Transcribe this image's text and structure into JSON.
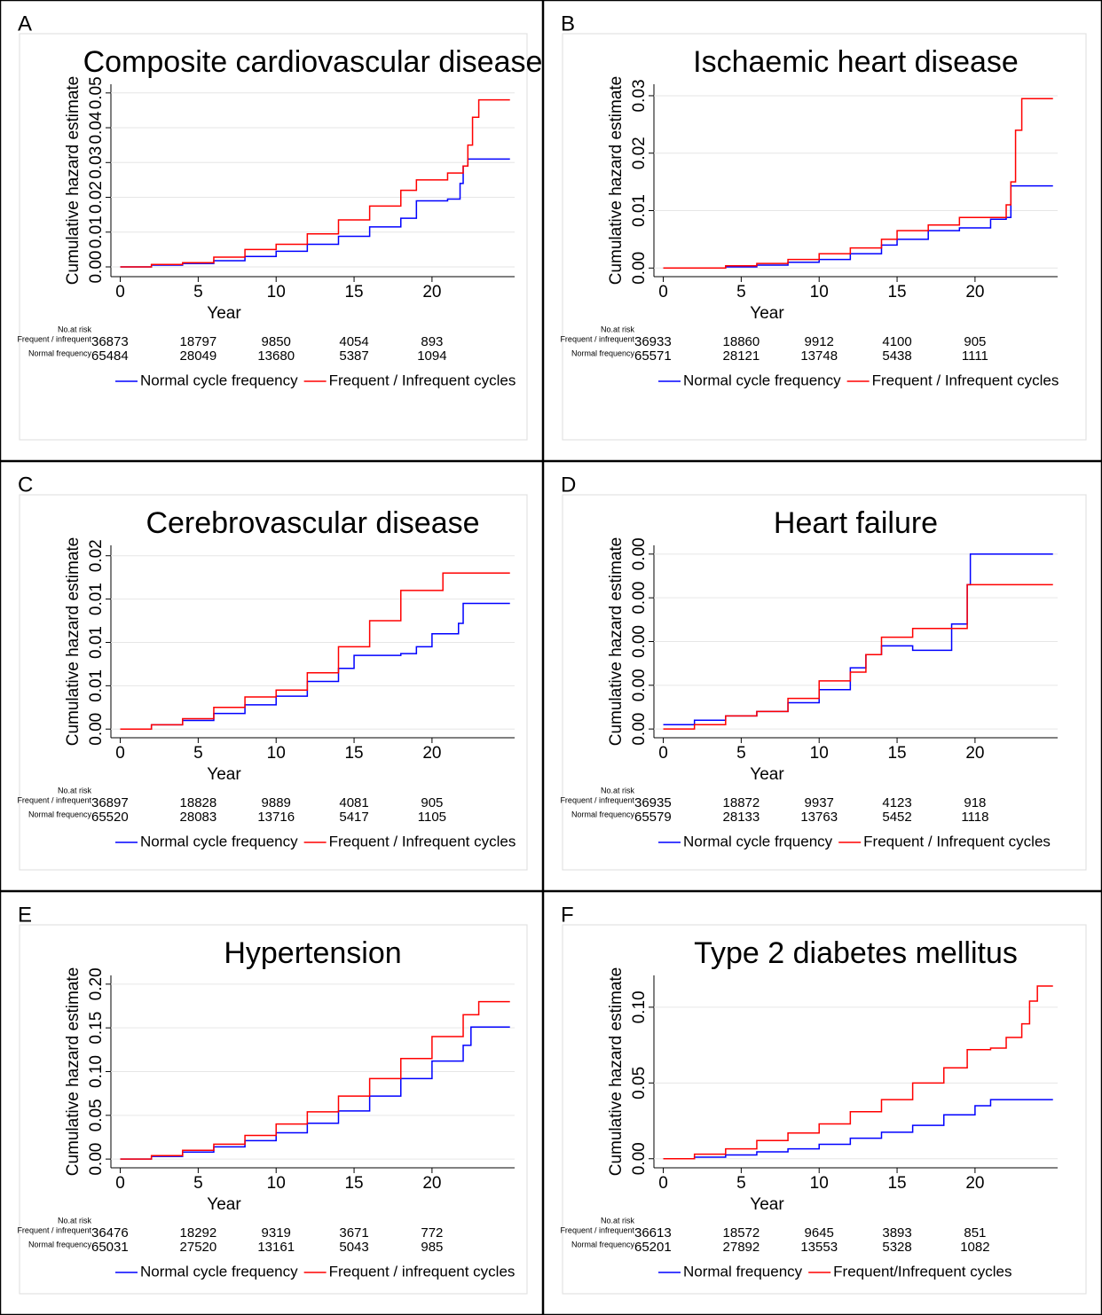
{
  "chart_data": [
    {
      "type": "step",
      "panel": "A",
      "title": "Composite cardiovascular disease",
      "xlabel": "Year",
      "ylabel": "Cumulative hazard estimate",
      "xlim": [
        -0.6,
        25.3
      ],
      "xticks": [
        0,
        5,
        10,
        15,
        20
      ],
      "ylim": [
        -0.0028,
        0.0525
      ],
      "yticks": [
        {
          "value": 0,
          "label": "0.00"
        },
        0.01,
        0.02,
        0.03,
        0.04,
        0.05
      ],
      "series": [
        {
          "name": "Normal cycle frequency",
          "color": "#0000ff",
          "x": [
            0,
            2,
            4,
            6,
            8,
            10,
            12,
            14,
            16,
            18,
            19,
            21,
            21.8,
            22,
            22.3,
            25
          ],
          "values": [
            0,
            0.0005,
            0.001,
            0.0018,
            0.003,
            0.0045,
            0.0065,
            0.0088,
            0.0115,
            0.014,
            0.019,
            0.0195,
            0.024,
            0.029,
            0.031,
            0.031
          ]
        },
        {
          "name": "Frequent / Infrequent cycles",
          "color": "#ff0000",
          "x": [
            0,
            2,
            4,
            6,
            8,
            10,
            12,
            14,
            16,
            18,
            19,
            21,
            22,
            22.3,
            22.6,
            23,
            25
          ],
          "values": [
            0,
            0.0007,
            0.0012,
            0.0028,
            0.005,
            0.0065,
            0.0095,
            0.0135,
            0.0175,
            0.022,
            0.025,
            0.027,
            0.029,
            0.035,
            0.043,
            0.048,
            0.048
          ]
        }
      ],
      "risk_table": {
        "title": "No.at risk",
        "rows": [
          {
            "label": "Frequent / infrequent",
            "values": [
              36873,
              18797,
              9850,
              4054,
              893
            ]
          },
          {
            "label": "Normal frequency",
            "values": [
              65484,
              28049,
              13680,
              5387,
              1094
            ]
          }
        ]
      }
    },
    {
      "type": "step",
      "panel": "B",
      "title": "Ischaemic heart disease",
      "xlabel": "Year",
      "ylabel": "Cumulative hazard estimate",
      "xlim": [
        -0.6,
        25.3
      ],
      "xticks": [
        0,
        5,
        10,
        15,
        20
      ],
      "ylim": [
        -0.0015,
        0.032
      ],
      "yticks": [
        {
          "value": 0,
          "label": "0.00"
        },
        0.01,
        0.02,
        0.03
      ],
      "series": [
        {
          "name": "Normal cycle frequency",
          "color": "#0000ff",
          "x": [
            0,
            4,
            6,
            8,
            10,
            12,
            14,
            15,
            17,
            19,
            21,
            22,
            22.3,
            25
          ],
          "values": [
            0,
            0.0002,
            0.0005,
            0.001,
            0.0015,
            0.0025,
            0.004,
            0.005,
            0.0065,
            0.007,
            0.0085,
            0.0088,
            0.0143,
            0.0143
          ]
        },
        {
          "name": "Frequent / Infrequent cycles",
          "color": "#ff0000",
          "x": [
            0,
            4,
            6,
            8,
            10,
            12,
            14,
            15,
            17,
            19,
            22,
            22.3,
            22.6,
            23,
            25
          ],
          "values": [
            0,
            0.0004,
            0.0008,
            0.0015,
            0.0025,
            0.0035,
            0.005,
            0.0065,
            0.0075,
            0.0088,
            0.011,
            0.015,
            0.024,
            0.0295,
            0.0295
          ]
        }
      ],
      "risk_table": {
        "title": "No.at risk",
        "rows": [
          {
            "label": "Frequent / infrequent",
            "values": [
              36933,
              18860,
              9912,
              4100,
              905
            ]
          },
          {
            "label": "Normal frequency",
            "values": [
              65571,
              28121,
              13748,
              5438,
              1111
            ]
          }
        ]
      }
    },
    {
      "type": "step",
      "panel": "C",
      "title": "Cerebrovascular disease",
      "xlabel": "Year",
      "ylabel": "Cumulative hazard estimate",
      "xlim": [
        -0.6,
        25.3
      ],
      "xticks": [
        0,
        5,
        10,
        15,
        20
      ],
      "ylim": [
        -0.001,
        0.0212
      ],
      "yticks": [
        {
          "value": 0,
          "label": "0.00"
        },
        {
          "value": 0.005,
          "label": "0.01"
        },
        0.01,
        {
          "value": 0.015,
          "label": "0.01"
        },
        0.02
      ],
      "series": [
        {
          "name": "Normal cycle frequency",
          "color": "#0000ff",
          "x": [
            0,
            2,
            4,
            6,
            8,
            10,
            12,
            14,
            15,
            18,
            19,
            20,
            21.5,
            21.7,
            22,
            25
          ],
          "values": [
            0,
            0.0005,
            0.001,
            0.0018,
            0.0028,
            0.0038,
            0.0055,
            0.007,
            0.0085,
            0.0087,
            0.0095,
            0.011,
            0.011,
            0.0122,
            0.0145,
            0.0145
          ]
        },
        {
          "name": "Frequent / Infrequent cycles",
          "color": "#ff0000",
          "x": [
            0,
            2,
            4,
            6,
            8,
            10,
            12,
            14,
            16,
            18,
            20.5,
            20.7,
            25
          ],
          "values": [
            0,
            0.0005,
            0.0012,
            0.0025,
            0.0037,
            0.0045,
            0.0065,
            0.0095,
            0.0125,
            0.016,
            0.016,
            0.018,
            0.018
          ]
        }
      ],
      "risk_table": {
        "title": "No.at risk",
        "rows": [
          {
            "label": "Frequent / infrequent",
            "values": [
              36897,
              18828,
              9889,
              4081,
              905
            ]
          },
          {
            "label": "Normal frequency",
            "values": [
              65520,
              28083,
              13716,
              5417,
              1105
            ]
          }
        ]
      }
    },
    {
      "type": "step",
      "panel": "D",
      "title": "Heart failure",
      "xlabel": "Year",
      "ylabel": "Cumulative hazard estimate",
      "xlim": [
        -0.6,
        25.3
      ],
      "xticks": [
        0,
        5,
        10,
        15,
        20
      ],
      "ylim": [
        -0.0002,
        0.0042
      ],
      "yticks": [
        {
          "value": 0,
          "label": "0.00"
        },
        {
          "value": 0.001,
          "label": "0.00"
        },
        {
          "value": 0.002,
          "label": "0.00"
        },
        {
          "value": 0.003,
          "label": "0.00"
        },
        {
          "value": 0.004,
          "label": "0.00"
        }
      ],
      "series": [
        {
          "name": "Normal cycle frquency",
          "color": "#0000ff",
          "x": [
            0,
            2,
            4,
            6,
            8,
            10,
            12,
            13,
            14,
            16,
            18.5,
            19.5,
            19.7,
            25
          ],
          "values": [
            0.0001,
            0.0002,
            0.0003,
            0.0004,
            0.0006,
            0.0009,
            0.0014,
            0.0017,
            0.0019,
            0.0018,
            0.0024,
            0.0033,
            0.004,
            0.004
          ]
        },
        {
          "name": "Frequent / Infrequent cycles",
          "color": "#ff0000",
          "x": [
            0,
            2,
            4,
            6,
            8,
            10,
            12,
            13,
            14,
            16,
            19,
            19.5,
            25
          ],
          "values": [
            0,
            0.0001,
            0.0003,
            0.0004,
            0.0007,
            0.0011,
            0.0013,
            0.0017,
            0.0021,
            0.0023,
            0.0023,
            0.0033,
            0.0033
          ]
        }
      ],
      "risk_table": {
        "title": "No.at risk",
        "rows": [
          {
            "label": "Frequent / infrequent",
            "values": [
              36935,
              18872,
              9937,
              4123,
              918
            ]
          },
          {
            "label": "Normal frequency",
            "values": [
              65579,
              28133,
              13763,
              5452,
              1118
            ]
          }
        ]
      }
    },
    {
      "type": "step",
      "panel": "E",
      "title": "Hypertension",
      "xlabel": "Year",
      "ylabel": "Cumulative hazard estimate",
      "xlim": [
        -0.6,
        25.3
      ],
      "xticks": [
        0,
        5,
        10,
        15,
        20
      ],
      "ylim": [
        -0.01,
        0.21
      ],
      "yticks": [
        {
          "value": 0,
          "label": "0.00"
        },
        0.05,
        {
          "value": 0.1,
          "label": "0.10"
        },
        0.15,
        {
          "value": 0.2,
          "label": "0.20"
        }
      ],
      "series": [
        {
          "name": "Normal cycle frequency",
          "color": "#0000ff",
          "x": [
            0,
            2,
            4,
            6,
            8,
            10,
            12,
            14,
            16,
            18,
            20,
            22,
            22.5,
            25
          ],
          "values": [
            0,
            0.003,
            0.008,
            0.014,
            0.021,
            0.03,
            0.041,
            0.055,
            0.072,
            0.092,
            0.112,
            0.13,
            0.151,
            0.151
          ]
        },
        {
          "name": "Frequent / infrequent cycles",
          "color": "#ff0000",
          "x": [
            0,
            2,
            4,
            6,
            8,
            10,
            12,
            14,
            16,
            18,
            20,
            22,
            23,
            25
          ],
          "values": [
            0,
            0.004,
            0.01,
            0.017,
            0.027,
            0.04,
            0.054,
            0.072,
            0.092,
            0.115,
            0.14,
            0.165,
            0.18,
            0.18
          ]
        }
      ],
      "risk_table": {
        "title": "No.at risk",
        "rows": [
          {
            "label": "Frequent / infrequent",
            "values": [
              36476,
              18292,
              9319,
              3671,
              772
            ]
          },
          {
            "label": "Normal frequency",
            "values": [
              65031,
              27520,
              13161,
              5043,
              985
            ]
          }
        ]
      }
    },
    {
      "type": "step",
      "panel": "F",
      "title": "Type 2 diabetes mellitus",
      "xlabel": "Year",
      "ylabel": "Cumulative hazard estimate",
      "xlim": [
        -0.6,
        25.3
      ],
      "xticks": [
        0,
        5,
        10,
        15,
        20
      ],
      "ylim": [
        -0.006,
        0.121
      ],
      "yticks": [
        {
          "value": 0,
          "label": "0.00"
        },
        0.05,
        {
          "value": 0.1,
          "label": "0.10"
        }
      ],
      "series": [
        {
          "name": "Normal frequency",
          "color": "#0000ff",
          "x": [
            0,
            2,
            4,
            6,
            8,
            10,
            12,
            14,
            16,
            18,
            20,
            21,
            25
          ],
          "values": [
            0,
            0.001,
            0.0025,
            0.0045,
            0.0065,
            0.0095,
            0.0135,
            0.0175,
            0.022,
            0.029,
            0.035,
            0.039,
            0.039
          ]
        },
        {
          "name": "Frequent/Infrequent cycles",
          "color": "#ff0000",
          "x": [
            0,
            2,
            4,
            6,
            8,
            10,
            12,
            14,
            16,
            18,
            19.5,
            21,
            22,
            23,
            23.5,
            24,
            25
          ],
          "values": [
            0,
            0.003,
            0.0065,
            0.012,
            0.017,
            0.023,
            0.031,
            0.039,
            0.05,
            0.06,
            0.072,
            0.073,
            0.08,
            0.089,
            0.104,
            0.114,
            0.114
          ]
        }
      ],
      "risk_table": {
        "title": "No.at risk",
        "rows": [
          {
            "label": "Frequent / infrequent",
            "values": [
              36613,
              18572,
              9645,
              3893,
              851
            ]
          },
          {
            "label": "Normal frequency",
            "values": [
              65201,
              27892,
              13553,
              5328,
              1082
            ]
          }
        ]
      }
    }
  ]
}
